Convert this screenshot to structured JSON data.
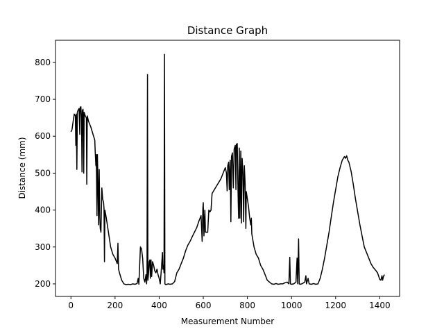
{
  "chart_data": {
    "type": "line",
    "title": "Distance Graph",
    "xlabel": "Measurement Number",
    "ylabel": "Distance (mm)",
    "xlim": [
      -70,
      1490
    ],
    "ylim": [
      166,
      860
    ],
    "xticks": [
      0,
      200,
      400,
      600,
      800,
      1000,
      1200,
      1400
    ],
    "yticks": [
      200,
      300,
      400,
      500,
      600,
      700,
      800
    ],
    "grid": false,
    "legend": "none",
    "series": [
      {
        "color": "#000000",
        "points": [
          [
            0,
            612
          ],
          [
            5,
            618
          ],
          [
            10,
            640
          ],
          [
            15,
            660
          ],
          [
            20,
            655
          ],
          [
            22,
            575
          ],
          [
            24,
            660
          ],
          [
            27,
            510
          ],
          [
            29,
            665
          ],
          [
            32,
            670
          ],
          [
            37,
            675
          ],
          [
            40,
            605
          ],
          [
            42,
            678
          ],
          [
            45,
            680
          ],
          [
            48,
            650
          ],
          [
            50,
            503
          ],
          [
            52,
            670
          ],
          [
            55,
            673
          ],
          [
            58,
            500
          ],
          [
            60,
            665
          ],
          [
            65,
            655
          ],
          [
            70,
            650
          ],
          [
            72,
            470
          ],
          [
            74,
            655
          ],
          [
            80,
            640
          ],
          [
            90,
            625
          ],
          [
            100,
            605
          ],
          [
            108,
            590
          ],
          [
            110,
            560
          ],
          [
            113,
            520
          ],
          [
            115,
            550
          ],
          [
            118,
            385
          ],
          [
            120,
            550
          ],
          [
            123,
            460
          ],
          [
            125,
            360
          ],
          [
            128,
            510
          ],
          [
            131,
            380
          ],
          [
            133,
            350
          ],
          [
            136,
            340
          ],
          [
            140,
            460
          ],
          [
            144,
            430
          ],
          [
            148,
            420
          ],
          [
            150,
            405
          ],
          [
            152,
            260
          ],
          [
            154,
            400
          ],
          [
            160,
            380
          ],
          [
            170,
            340
          ],
          [
            180,
            300
          ],
          [
            190,
            280
          ],
          [
            200,
            270
          ],
          [
            210,
            255
          ],
          [
            213,
            310
          ],
          [
            216,
            240
          ],
          [
            220,
            230
          ],
          [
            230,
            210
          ],
          [
            240,
            200
          ],
          [
            250,
            198
          ],
          [
            260,
            199
          ],
          [
            270,
            198
          ],
          [
            280,
            200
          ],
          [
            290,
            199
          ],
          [
            300,
            201
          ],
          [
            305,
            215
          ],
          [
            308,
            199
          ],
          [
            315,
            300
          ],
          [
            320,
            295
          ],
          [
            325,
            270
          ],
          [
            330,
            215
          ],
          [
            335,
            205
          ],
          [
            340,
            225
          ],
          [
            343,
            200
          ],
          [
            345,
            230
          ],
          [
            347,
            767
          ],
          [
            349,
            210
          ],
          [
            352,
            230
          ],
          [
            355,
            260
          ],
          [
            358,
            265
          ],
          [
            360,
            215
          ],
          [
            363,
            265
          ],
          [
            366,
            220
          ],
          [
            370,
            260
          ],
          [
            375,
            250
          ],
          [
            380,
            235
          ],
          [
            385,
            230
          ],
          [
            390,
            240
          ],
          [
            395,
            225
          ],
          [
            400,
            215
          ],
          [
            405,
            200
          ],
          [
            410,
            240
          ],
          [
            415,
            285
          ],
          [
            417,
            240
          ],
          [
            420,
            250
          ],
          [
            422,
            230
          ],
          [
            424,
            822
          ],
          [
            426,
            200
          ],
          [
            430,
            198
          ],
          [
            440,
            200
          ],
          [
            450,
            199
          ],
          [
            460,
            200
          ],
          [
            470,
            206
          ],
          [
            480,
            230
          ],
          [
            490,
            240
          ],
          [
            500,
            255
          ],
          [
            510,
            270
          ],
          [
            520,
            290
          ],
          [
            530,
            305
          ],
          [
            540,
            315
          ],
          [
            550,
            328
          ],
          [
            560,
            340
          ],
          [
            570,
            352
          ],
          [
            580,
            370
          ],
          [
            590,
            385
          ],
          [
            595,
            315
          ],
          [
            598,
            405
          ],
          [
            600,
            420
          ],
          [
            603,
            330
          ],
          [
            607,
            400
          ],
          [
            610,
            340
          ],
          [
            620,
            340
          ],
          [
            625,
            400
          ],
          [
            630,
            395
          ],
          [
            635,
            400
          ],
          [
            640,
            445
          ],
          [
            650,
            455
          ],
          [
            660,
            465
          ],
          [
            670,
            475
          ],
          [
            680,
            485
          ],
          [
            690,
            500
          ],
          [
            700,
            515
          ],
          [
            705,
            500
          ],
          [
            708,
            452
          ],
          [
            711,
            520
          ],
          [
            715,
            530
          ],
          [
            718,
            455
          ],
          [
            722,
            535
          ],
          [
            725,
            368
          ],
          [
            728,
            545
          ],
          [
            732,
            555
          ],
          [
            736,
            460
          ],
          [
            740,
            565
          ],
          [
            745,
            575
          ],
          [
            748,
            455
          ],
          [
            750,
            578
          ],
          [
            754,
            580
          ],
          [
            757,
            470
          ],
          [
            760,
            378
          ],
          [
            763,
            568
          ],
          [
            766,
            378
          ],
          [
            770,
            560
          ],
          [
            773,
            365
          ],
          [
            776,
            540
          ],
          [
            780,
            500
          ],
          [
            783,
            368
          ],
          [
            786,
            520
          ],
          [
            790,
            470
          ],
          [
            793,
            350
          ],
          [
            795,
            450
          ],
          [
            800,
            430
          ],
          [
            805,
            410
          ],
          [
            810,
            380
          ],
          [
            815,
            360
          ],
          [
            818,
            378
          ],
          [
            820,
            335
          ],
          [
            830,
            300
          ],
          [
            840,
            280
          ],
          [
            850,
            270
          ],
          [
            860,
            250
          ],
          [
            870,
            240
          ],
          [
            880,
            225
          ],
          [
            890,
            210
          ],
          [
            900,
            205
          ],
          [
            910,
            200
          ],
          [
            920,
            199
          ],
          [
            930,
            201
          ],
          [
            940,
            199
          ],
          [
            950,
            200
          ],
          [
            960,
            200
          ],
          [
            970,
            203
          ],
          [
            980,
            205
          ],
          [
            988,
            200
          ],
          [
            992,
            272
          ],
          [
            995,
            200
          ],
          [
            1000,
            199
          ],
          [
            1010,
            200
          ],
          [
            1020,
            205
          ],
          [
            1025,
            270
          ],
          [
            1028,
            200
          ],
          [
            1032,
            322
          ],
          [
            1035,
            200
          ],
          [
            1040,
            199
          ],
          [
            1050,
            201
          ],
          [
            1060,
            205
          ],
          [
            1065,
            222
          ],
          [
            1068,
            200
          ],
          [
            1075,
            215
          ],
          [
            1080,
            200
          ],
          [
            1090,
            199
          ],
          [
            1100,
            201
          ],
          [
            1110,
            199
          ],
          [
            1120,
            200
          ],
          [
            1130,
            215
          ],
          [
            1140,
            240
          ],
          [
            1150,
            270
          ],
          [
            1160,
            305
          ],
          [
            1170,
            340
          ],
          [
            1180,
            380
          ],
          [
            1190,
            420
          ],
          [
            1200,
            455
          ],
          [
            1210,
            490
          ],
          [
            1220,
            515
          ],
          [
            1230,
            535
          ],
          [
            1240,
            545
          ],
          [
            1245,
            540
          ],
          [
            1250,
            547
          ],
          [
            1255,
            535
          ],
          [
            1260,
            530
          ],
          [
            1270,
            505
          ],
          [
            1280,
            470
          ],
          [
            1290,
            430
          ],
          [
            1300,
            395
          ],
          [
            1310,
            360
          ],
          [
            1320,
            330
          ],
          [
            1330,
            300
          ],
          [
            1340,
            285
          ],
          [
            1350,
            270
          ],
          [
            1360,
            255
          ],
          [
            1370,
            245
          ],
          [
            1380,
            238
          ],
          [
            1390,
            230
          ],
          [
            1400,
            212
          ],
          [
            1405,
            210
          ],
          [
            1410,
            222
          ],
          [
            1413,
            210
          ],
          [
            1418,
            222
          ],
          [
            1422,
            225
          ]
        ]
      }
    ]
  }
}
